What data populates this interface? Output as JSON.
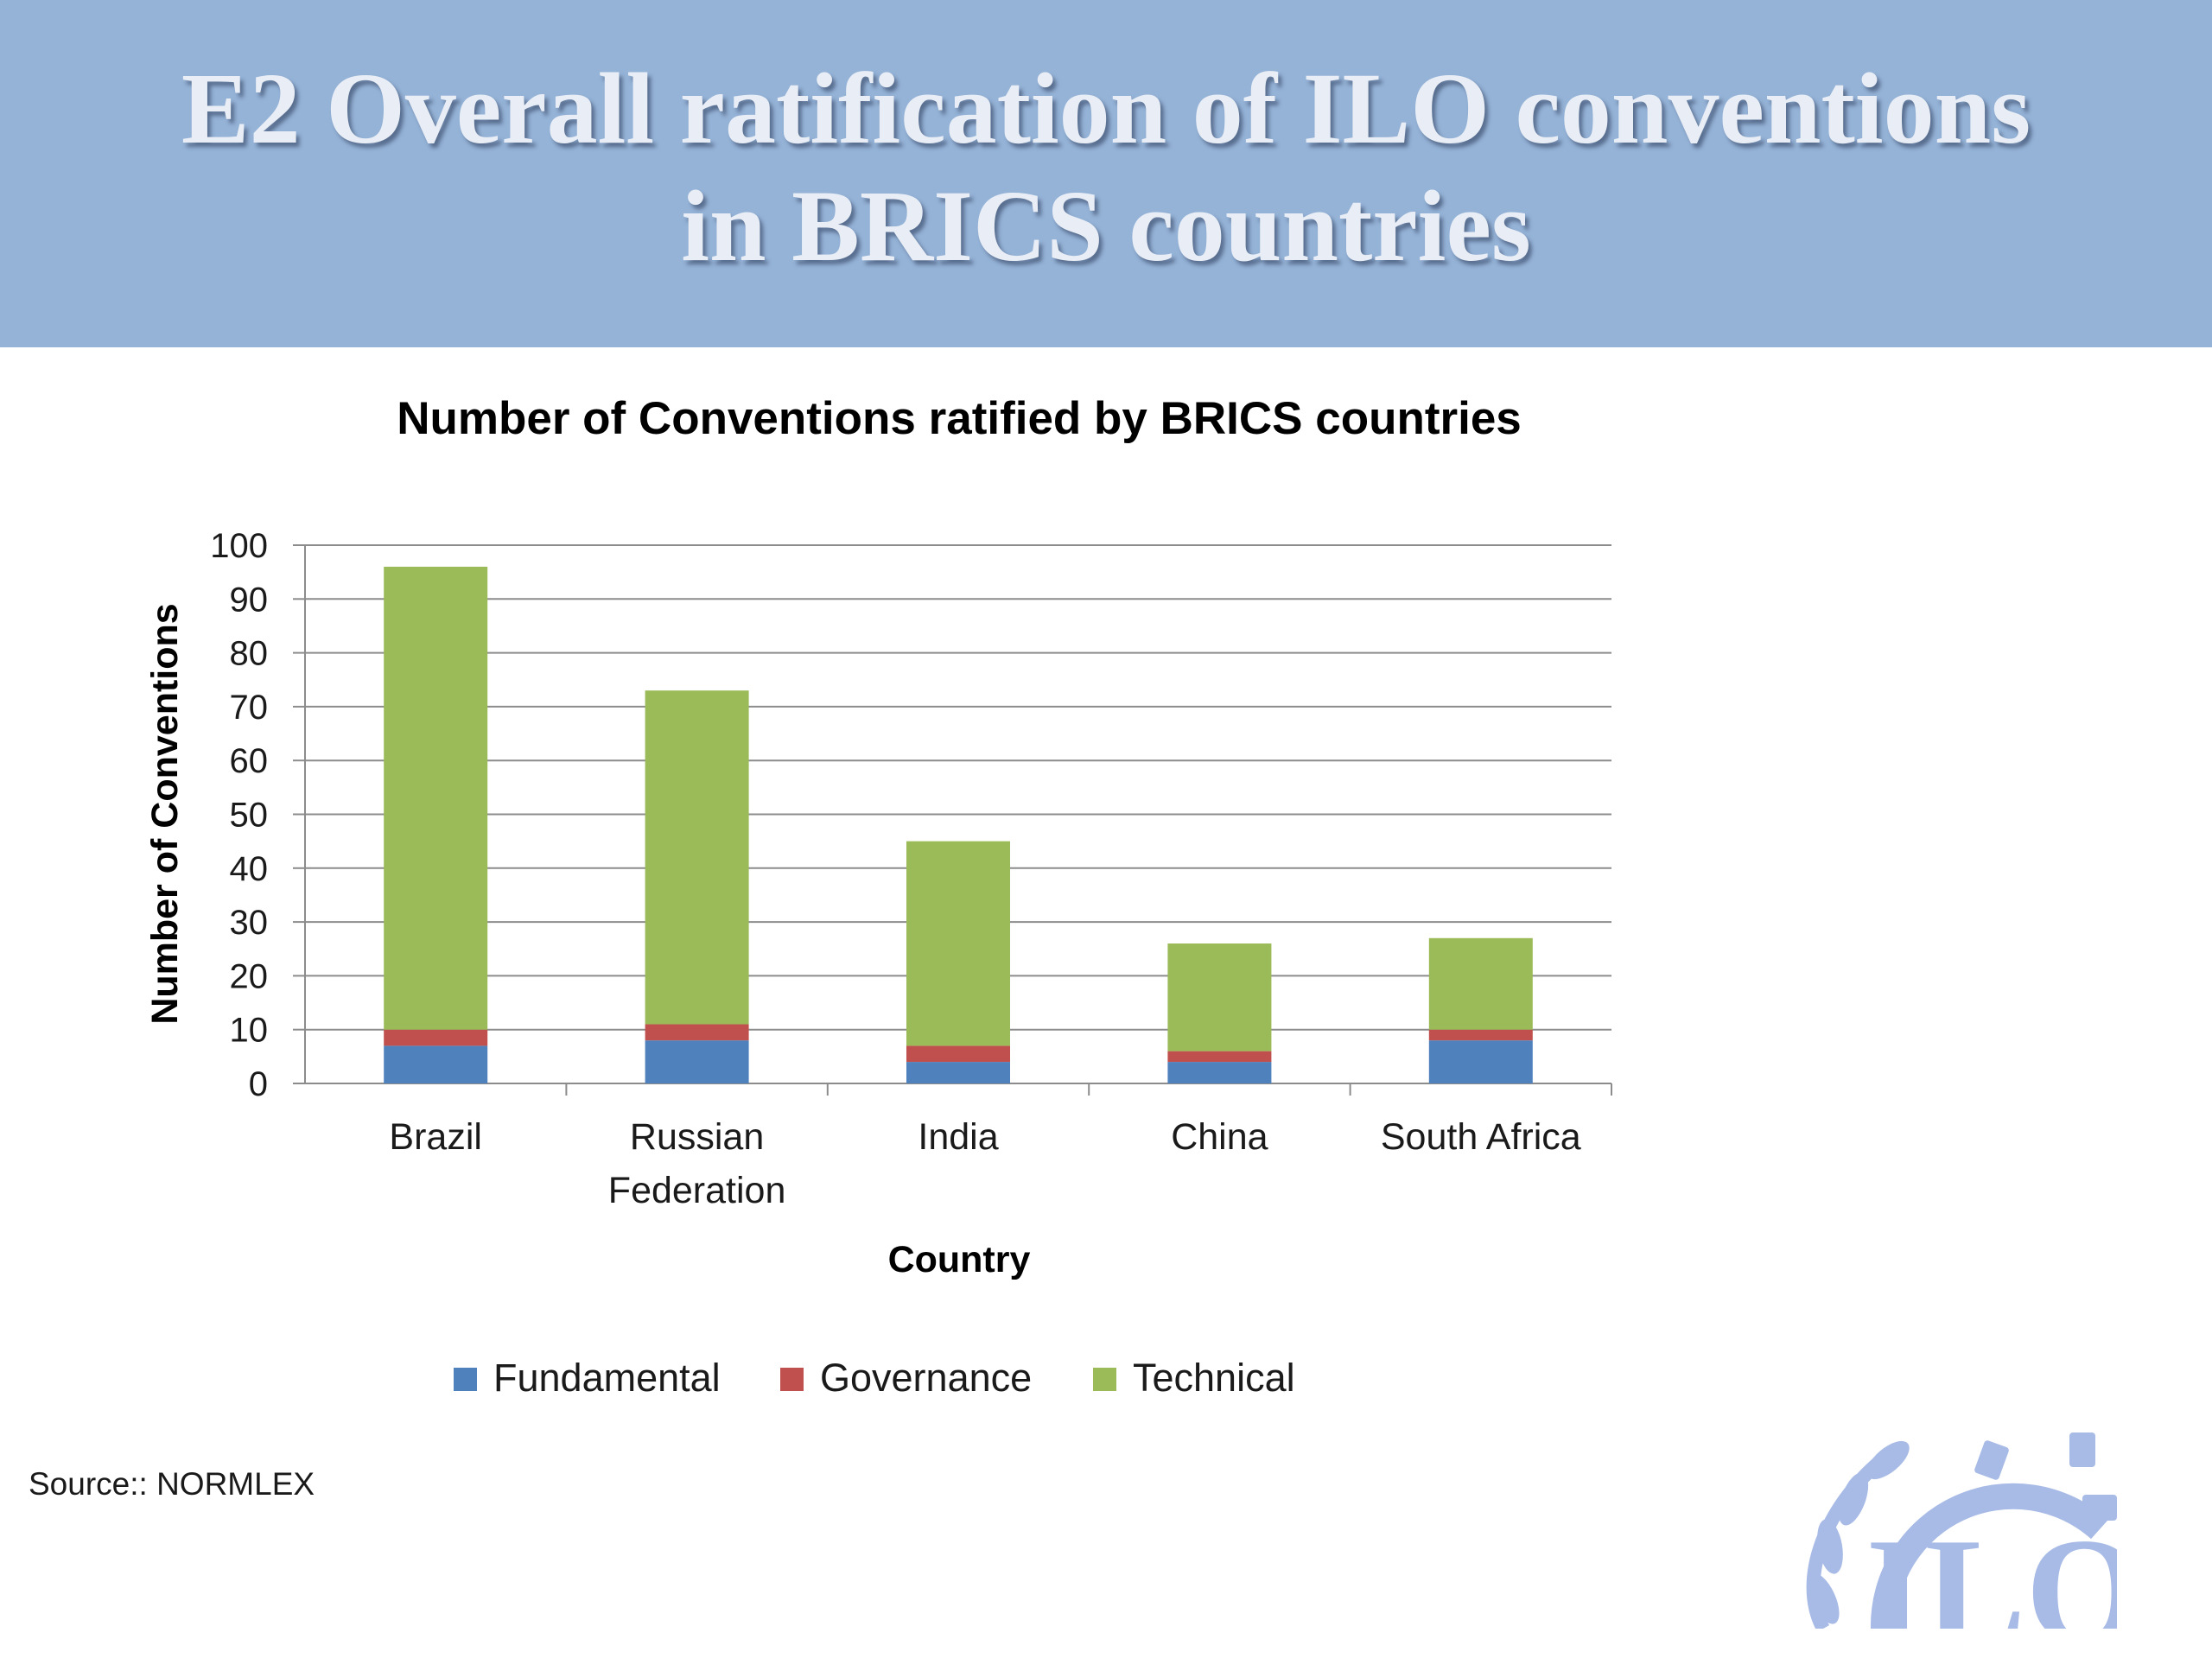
{
  "banner": {
    "title_line1": "E2  Overall ratification of ILO conventions",
    "title_line2": "in BRICS countries"
  },
  "source": "Source:: NORMLEX",
  "logo": {
    "text": "ILO",
    "icon": "ilo-emblem"
  },
  "colors": {
    "banner": "#95b3d7",
    "Fundamental": "#4f81bd",
    "Governance": "#c0504d",
    "Technical": "#9bbb59"
  },
  "chart_data": {
    "type": "bar",
    "stacked": true,
    "title": "Number of Conventions ratified by BRICS countries",
    "xlabel": "Country",
    "ylabel": "Number of Conventions",
    "categories": [
      [
        "Brazil"
      ],
      [
        "Russian",
        "Federation"
      ],
      [
        "India"
      ],
      [
        "China"
      ],
      [
        "South Africa"
      ]
    ],
    "series": [
      {
        "name": "Fundamental",
        "color": "#4f81bd",
        "values": [
          7,
          8,
          4,
          4,
          8
        ]
      },
      {
        "name": "Governance",
        "color": "#c0504d",
        "values": [
          3,
          3,
          3,
          2,
          2
        ]
      },
      {
        "name": "Technical",
        "color": "#9bbb59",
        "values": [
          86,
          62,
          38,
          20,
          17
        ]
      }
    ],
    "ylim": [
      0,
      100
    ],
    "yticks": [
      0,
      10,
      20,
      30,
      40,
      50,
      60,
      70,
      80,
      90,
      100
    ],
    "grid": true,
    "legend": "bottom"
  }
}
